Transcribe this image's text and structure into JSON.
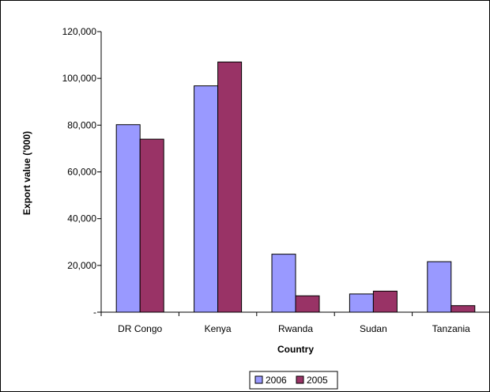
{
  "chart_data": {
    "type": "bar",
    "title": "",
    "xlabel": "Country",
    "ylabel": "Export value ('000)",
    "categories": [
      "DR Congo",
      "Kenya",
      "Rwanda",
      "Sudan",
      "Tanzania"
    ],
    "series": [
      {
        "name": "2006",
        "values": [
          80200,
          96800,
          24800,
          7800,
          21600
        ],
        "color": "#9999ff"
      },
      {
        "name": "2005",
        "values": [
          74000,
          107000,
          7000,
          9000,
          2800
        ],
        "color": "#993366"
      }
    ],
    "ylim": [
      0,
      120000
    ],
    "yticks": [
      0,
      20000,
      40000,
      60000,
      80000,
      100000,
      120000
    ],
    "ytick_labels": [
      "-",
      "20,000",
      "40,000",
      "60,000",
      "80,000",
      "100,000",
      "120,000"
    ],
    "grid": false,
    "legend_position": "bottom"
  }
}
